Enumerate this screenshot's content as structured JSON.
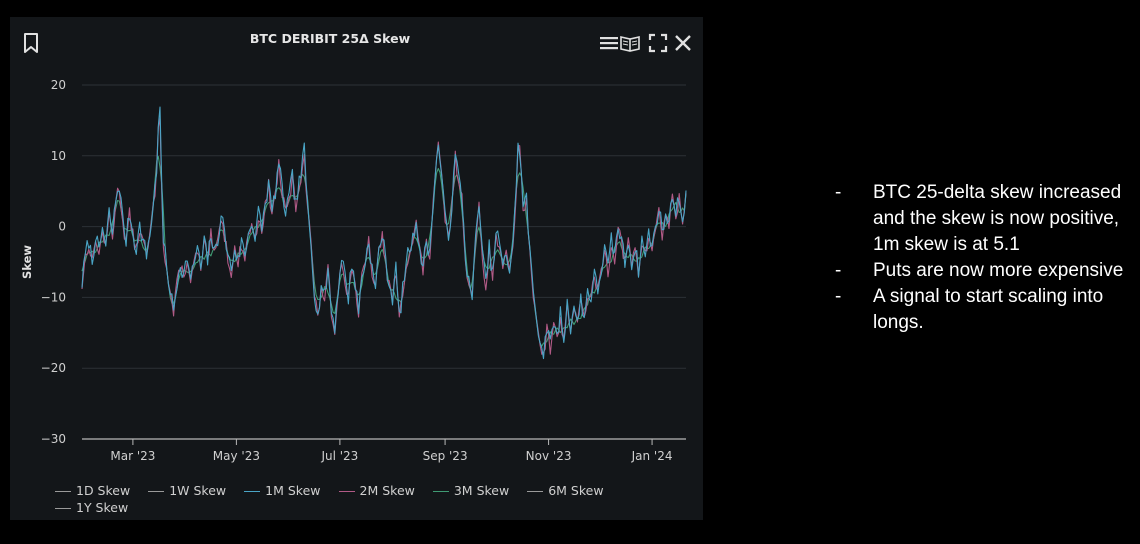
{
  "chart_panel": {
    "icons": {
      "bookmark": "bookmark-icon",
      "menu": "menu-icon",
      "book": "book-icon",
      "fullscreen": "fullscreen-icon",
      "close": "close-icon"
    }
  },
  "chart_data": {
    "type": "line",
    "title": "BTC DERIBIT 25Δ Skew",
    "xlabel": "",
    "ylabel": "Skew",
    "ylim": [
      -30,
      20
    ],
    "yticks": [
      "20",
      "10",
      "0",
      "−10",
      "−20",
      "−30"
    ],
    "yticks_values": [
      20,
      10,
      0,
      -10,
      -20,
      -30
    ],
    "xticks": [
      {
        "label": "Mar '23",
        "t": 30
      },
      {
        "label": "May '23",
        "t": 91
      },
      {
        "label": "Jul '23",
        "t": 152
      },
      {
        "label": "Sep '23",
        "t": 214
      },
      {
        "label": "Nov '23",
        "t": 275
      },
      {
        "label": "Jan '24",
        "t": 336
      }
    ],
    "x_range_days": [
      0,
      356
    ],
    "x_unit": "days since 2023-01-30",
    "anchors_1m": [
      [
        0,
        -8
      ],
      [
        2,
        -4
      ],
      [
        4,
        -2
      ],
      [
        6,
        -5
      ],
      [
        8,
        -1
      ],
      [
        10,
        -4
      ],
      [
        12,
        0
      ],
      [
        14,
        -3
      ],
      [
        16,
        2
      ],
      [
        18,
        -1
      ],
      [
        20,
        4
      ],
      [
        22,
        6
      ],
      [
        24,
        1
      ],
      [
        26,
        -2
      ],
      [
        28,
        2
      ],
      [
        30,
        -1
      ],
      [
        32,
        -3
      ],
      [
        34,
        0
      ],
      [
        36,
        -2
      ],
      [
        38,
        -4
      ],
      [
        40,
        -1
      ],
      [
        42,
        3
      ],
      [
        44,
        8
      ],
      [
        45,
        15
      ],
      [
        46,
        16
      ],
      [
        47,
        6
      ],
      [
        48,
        -2
      ],
      [
        50,
        -6
      ],
      [
        52,
        -9
      ],
      [
        54,
        -12
      ],
      [
        56,
        -8
      ],
      [
        58,
        -5
      ],
      [
        60,
        -7
      ],
      [
        62,
        -4
      ],
      [
        64,
        -8
      ],
      [
        66,
        -5
      ],
      [
        68,
        -3
      ],
      [
        70,
        -6
      ],
      [
        72,
        -2
      ],
      [
        74,
        -5
      ],
      [
        76,
        -1
      ],
      [
        78,
        -4
      ],
      [
        80,
        -2
      ],
      [
        82,
        2
      ],
      [
        84,
        -1
      ],
      [
        86,
        -4
      ],
      [
        88,
        -6
      ],
      [
        90,
        -3
      ],
      [
        92,
        -5
      ],
      [
        94,
        -2
      ],
      [
        96,
        -4
      ],
      [
        98,
        -1
      ],
      [
        100,
        1
      ],
      [
        102,
        -2
      ],
      [
        104,
        2
      ],
      [
        106,
        0
      ],
      [
        108,
        3
      ],
      [
        110,
        6
      ],
      [
        112,
        2
      ],
      [
        114,
        5
      ],
      [
        116,
        9
      ],
      [
        118,
        5
      ],
      [
        120,
        2
      ],
      [
        122,
        4
      ],
      [
        124,
        7
      ],
      [
        126,
        3
      ],
      [
        128,
        6
      ],
      [
        130,
        9
      ],
      [
        131,
        11
      ],
      [
        132,
        6
      ],
      [
        133,
        3
      ],
      [
        135,
        -2
      ],
      [
        137,
        -9
      ],
      [
        139,
        -13
      ],
      [
        141,
        -8
      ],
      [
        143,
        -10
      ],
      [
        145,
        -6
      ],
      [
        147,
        -12
      ],
      [
        149,
        -14
      ],
      [
        151,
        -9
      ],
      [
        153,
        -4
      ],
      [
        155,
        -7
      ],
      [
        157,
        -10
      ],
      [
        159,
        -5
      ],
      [
        161,
        -8
      ],
      [
        163,
        -12
      ],
      [
        165,
        -7
      ],
      [
        167,
        -5
      ],
      [
        169,
        -2
      ],
      [
        171,
        -6
      ],
      [
        173,
        -9
      ],
      [
        175,
        -3
      ],
      [
        177,
        -1
      ],
      [
        179,
        -5
      ],
      [
        181,
        -8
      ],
      [
        183,
        -10
      ],
      [
        185,
        -6
      ],
      [
        187,
        -13
      ],
      [
        189,
        -9
      ],
      [
        191,
        -5
      ],
      [
        193,
        -3
      ],
      [
        195,
        -2
      ],
      [
        197,
        1
      ],
      [
        199,
        -3
      ],
      [
        201,
        -6
      ],
      [
        203,
        -2
      ],
      [
        205,
        -4
      ],
      [
        207,
        4
      ],
      [
        209,
        9
      ],
      [
        210,
        12
      ],
      [
        212,
        7
      ],
      [
        214,
        1
      ],
      [
        216,
        -1
      ],
      [
        218,
        3
      ],
      [
        220,
        10
      ],
      [
        222,
        7
      ],
      [
        224,
        4
      ],
      [
        226,
        -4
      ],
      [
        228,
        -8
      ],
      [
        230,
        -10
      ],
      [
        232,
        -2
      ],
      [
        234,
        4
      ],
      [
        236,
        -4
      ],
      [
        238,
        -8
      ],
      [
        240,
        -3
      ],
      [
        242,
        -7
      ],
      [
        244,
        -1
      ],
      [
        246,
        -2
      ],
      [
        248,
        -6
      ],
      [
        250,
        -4
      ],
      [
        252,
        -6
      ],
      [
        254,
        -2
      ],
      [
        256,
        5
      ],
      [
        257,
        12
      ],
      [
        258,
        11
      ],
      [
        260,
        3
      ],
      [
        262,
        4
      ],
      [
        264,
        -4
      ],
      [
        266,
        -9
      ],
      [
        268,
        -13
      ],
      [
        270,
        -16
      ],
      [
        272,
        -18
      ],
      [
        274,
        -14
      ],
      [
        276,
        -17
      ],
      [
        278,
        -13
      ],
      [
        280,
        -16
      ],
      [
        282,
        -12
      ],
      [
        284,
        -16
      ],
      [
        286,
        -11
      ],
      [
        288,
        -14
      ],
      [
        290,
        -11
      ],
      [
        292,
        -14
      ],
      [
        294,
        -10
      ],
      [
        296,
        -13
      ],
      [
        298,
        -9
      ],
      [
        300,
        -10
      ],
      [
        302,
        -7
      ],
      [
        304,
        -9
      ],
      [
        306,
        -6
      ],
      [
        308,
        -3
      ],
      [
        310,
        -6
      ],
      [
        312,
        -2
      ],
      [
        314,
        -4
      ],
      [
        316,
        0
      ],
      [
        318,
        -2
      ],
      [
        320,
        -5
      ],
      [
        322,
        -2
      ],
      [
        324,
        -5
      ],
      [
        326,
        -3
      ],
      [
        328,
        -6
      ],
      [
        330,
        -2
      ],
      [
        332,
        -4
      ],
      [
        334,
        -1
      ],
      [
        336,
        -3
      ],
      [
        338,
        0
      ],
      [
        340,
        3
      ],
      [
        342,
        -1
      ],
      [
        344,
        2
      ],
      [
        346,
        0
      ],
      [
        348,
        5
      ],
      [
        350,
        2
      ],
      [
        352,
        4
      ],
      [
        354,
        1
      ],
      [
        356,
        5.1
      ]
    ],
    "series": [
      {
        "name": "1D Skew",
        "color": "#cfcfcf",
        "visible": false
      },
      {
        "name": "1W Skew",
        "color": "#ffffff",
        "visible": false
      },
      {
        "name": "1M Skew",
        "color": "#4aa5c6",
        "visible": true,
        "offset": 0,
        "noise": 1.2,
        "smooth": 1,
        "seed": 7
      },
      {
        "name": "2M Skew",
        "color": "#b15a86",
        "visible": true,
        "offset": -0.3,
        "noise": 1.0,
        "smooth": 1,
        "seed": 13
      },
      {
        "name": "3M Skew",
        "color": "#3f9a73",
        "visible": true,
        "offset": -0.5,
        "noise": 1.0,
        "smooth": 2,
        "seed": 29
      },
      {
        "name": "6M Skew",
        "color": "#333333",
        "visible": false
      },
      {
        "name": "1Y Skew",
        "color": "#2a2a2a",
        "visible": false
      }
    ],
    "grid": true,
    "legend": "bottom"
  },
  "notes": {
    "dash": "-",
    "items": [
      "BTC 25-delta skew increased and the skew is now positive, 1m skew is at 5.1",
      "Puts are now more expensive",
      "A signal to start scaling into longs."
    ]
  }
}
